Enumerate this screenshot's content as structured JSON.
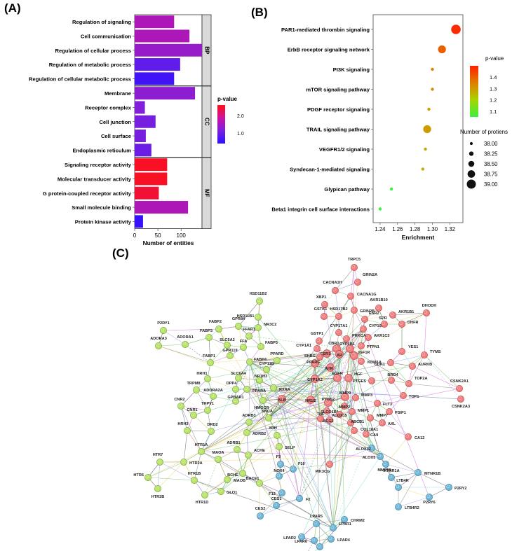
{
  "panels": {
    "a": "(A)",
    "b": "(B)",
    "c": "(C)"
  },
  "chart_data": [
    {
      "panel": "A",
      "type": "bar",
      "orientation": "horizontal",
      "xlabel": "Number of entities",
      "xlim": [
        0,
        145
      ],
      "xticks": [
        0,
        50,
        100
      ],
      "colorbar": {
        "title": "p-value",
        "ticks": [
          2.0,
          1.0
        ],
        "range": [
          0.4,
          2.6
        ],
        "colors": [
          "#ff1010",
          "#cc12a0",
          "#7a20e0",
          "#2a10ff"
        ]
      },
      "groups": [
        {
          "name": "BP",
          "categories": [
            "Regulation of signaling",
            "Cell communication",
            "Regulation of cellular process",
            "Regulation of metabolic process",
            "Regulation of cellular metabolic process"
          ],
          "values": [
            85,
            118,
            145,
            98,
            85
          ],
          "pvalues": [
            1.6,
            1.6,
            1.4,
            0.9,
            0.6
          ]
        },
        {
          "name": "CC",
          "categories": [
            "Membrane",
            "Receptor complex",
            "Cell junction",
            "Cell surface",
            "Endoplasmic reticulum"
          ],
          "values": [
            130,
            22,
            45,
            24,
            36
          ],
          "pvalues": [
            1.3,
            1.2,
            1.1,
            1.1,
            1.0
          ]
        },
        {
          "name": "MF",
          "categories": [
            "Signaling receptor activity",
            "Molecular transducer activity",
            "G protein-coupled receptor activity",
            "Small molecule binding",
            "Protein kinase activity"
          ],
          "values": [
            70,
            70,
            52,
            115,
            18
          ],
          "pvalues": [
            2.5,
            2.5,
            2.4,
            1.6,
            0.5
          ]
        }
      ]
    },
    {
      "panel": "B",
      "type": "scatter",
      "xlabel": "Enrichment",
      "xlim": [
        1.232,
        1.335
      ],
      "xticks": [
        1.24,
        1.26,
        1.28,
        1.3,
        1.32
      ],
      "categories": [
        "PAR1-mediated thrombin signaling",
        "ErbB receptor signaling network",
        "PI3K signaling",
        "mTOR signaling pathway",
        "PDGF receptor signaling",
        "TRAIL signaling pathway",
        "VEGFR1/2 signaling",
        "Syndecan-1-mediated signaling",
        "Glypican pathway",
        "Beta1 integrin cell surface interactions"
      ],
      "x": [
        1.327,
        1.311,
        1.3,
        1.3,
        1.296,
        1.294,
        1.292,
        1.289,
        1.253,
        1.24
      ],
      "size": [
        39.0,
        38.75,
        38.0,
        38.0,
        38.0,
        38.75,
        38.0,
        38.0,
        38.0,
        38.0
      ],
      "pvalue": [
        1.48,
        1.4,
        1.34,
        1.32,
        1.3,
        1.3,
        1.28,
        1.27,
        1.05,
        1.02
      ],
      "colorbar": {
        "title": "p-value",
        "ticks": [
          1.4,
          1.3,
          1.2,
          1.1
        ],
        "range": [
          1.05,
          1.5
        ],
        "colors": [
          "#ff2000",
          "#e07e00",
          "#a9d400",
          "#3bf040"
        ]
      },
      "size_legend": {
        "title": "Number of protiens",
        "labels": [
          "38.00",
          "38.25",
          "38.50",
          "38.75",
          "39.00"
        ]
      }
    }
  ],
  "network": {
    "nodes": [
      {
        "id": "TRPC5",
        "c": "r"
      },
      {
        "id": "GRIN2A",
        "c": "r"
      },
      {
        "id": "CACNA1H",
        "c": "r"
      },
      {
        "id": "CACNA1G",
        "c": "r"
      },
      {
        "id": "XBP1",
        "c": "r"
      },
      {
        "id": "GSTK1",
        "c": "r"
      },
      {
        "id": "HSD17B2",
        "c": "r"
      },
      {
        "id": "GRIN2B",
        "c": "r"
      },
      {
        "id": "ESR2",
        "c": "r"
      },
      {
        "id": "CYP19A1",
        "c": "r"
      },
      {
        "id": "AKR1C3",
        "c": "r"
      },
      {
        "id": "AKR1B10",
        "c": "r"
      },
      {
        "id": "AKR1B1",
        "c": "r"
      },
      {
        "id": "DHFR",
        "c": "r"
      },
      {
        "id": "DHODH",
        "c": "r"
      },
      {
        "id": "SPR",
        "c": "r"
      },
      {
        "id": "PTPN1",
        "c": "r"
      },
      {
        "id": "CYP17A1",
        "c": "r"
      },
      {
        "id": "PRKCA",
        "c": "r"
      },
      {
        "id": "CYP1B1",
        "c": "r"
      },
      {
        "id": "GSTP1",
        "c": "r"
      },
      {
        "id": "CBR1",
        "c": "r"
      },
      {
        "id": "ESR1",
        "c": "r"
      },
      {
        "id": "AR",
        "c": "r"
      },
      {
        "id": "IGF1R",
        "c": "r"
      },
      {
        "id": "KDM1A",
        "c": "r"
      },
      {
        "id": "YES1",
        "c": "r"
      },
      {
        "id": "TYMS",
        "c": "r"
      },
      {
        "id": "CDK1",
        "c": "r"
      },
      {
        "id": "AURKB",
        "c": "r"
      },
      {
        "id": "CYP1A1",
        "c": "r"
      },
      {
        "id": "SHBG",
        "c": "r"
      },
      {
        "id": "PPARG",
        "c": "r"
      },
      {
        "id": "AHR",
        "c": "r"
      },
      {
        "id": "EGFR",
        "c": "r"
      },
      {
        "id": "HGF",
        "c": "r"
      },
      {
        "id": "PTGES",
        "c": "r"
      },
      {
        "id": "BRD4",
        "c": "r"
      },
      {
        "id": "TOP2A",
        "c": "r"
      },
      {
        "id": "TOP1",
        "c": "r"
      },
      {
        "id": "CSNK2A1",
        "c": "r"
      },
      {
        "id": "CSNK2A3",
        "c": "r"
      },
      {
        "id": "CYP1A2",
        "c": "r"
      },
      {
        "id": "ALB",
        "c": "r"
      },
      {
        "id": "NR1I2",
        "c": "r"
      },
      {
        "id": "PTGS2",
        "c": "r"
      },
      {
        "id": "MMP9",
        "c": "r"
      },
      {
        "id": "MMP3",
        "c": "r"
      },
      {
        "id": "MMP2",
        "c": "r"
      },
      {
        "id": "MMP1",
        "c": "r"
      },
      {
        "id": "FLT3",
        "c": "r"
      },
      {
        "id": "PSIP1",
        "c": "r"
      },
      {
        "id": "MMP7",
        "c": "r"
      },
      {
        "id": "AXL",
        "c": "r"
      },
      {
        "id": "SLCO1B1",
        "c": "r"
      },
      {
        "id": "ABCG2",
        "c": "r"
      },
      {
        "id": "ABCB1",
        "c": "r"
      },
      {
        "id": "ALOX15",
        "c": "r"
      },
      {
        "id": "TNF",
        "c": "r"
      },
      {
        "id": "COL18A1",
        "c": "r"
      },
      {
        "id": "CA9",
        "c": "r"
      },
      {
        "id": "CA12",
        "c": "r"
      },
      {
        "id": "PIK3CG",
        "c": "r"
      },
      {
        "id": "HSD11B2",
        "c": "g"
      },
      {
        "id": "HSD11B1",
        "c": "g"
      },
      {
        "id": "NR3C2",
        "c": "g"
      },
      {
        "id": "FABP2",
        "c": "g"
      },
      {
        "id": "GPR84",
        "c": "g"
      },
      {
        "id": "FFAR1",
        "c": "g"
      },
      {
        "id": "FABP3",
        "c": "g"
      },
      {
        "id": "FFA",
        "c": "g"
      },
      {
        "id": "FABP5",
        "c": "g"
      },
      {
        "id": "SLC5A2",
        "c": "g"
      },
      {
        "id": "GPR119",
        "c": "g"
      },
      {
        "id": "PPARD",
        "c": "g"
      },
      {
        "id": "P2RY1",
        "c": "g"
      },
      {
        "id": "ADORA3",
        "c": "g"
      },
      {
        "id": "ADORA1",
        "c": "g"
      },
      {
        "id": "FABP1",
        "c": "g"
      },
      {
        "id": "FABP4",
        "c": "g"
      },
      {
        "id": "CYP11B",
        "c": "g"
      },
      {
        "id": "SLC6A4",
        "c": "g"
      },
      {
        "id": "NR1H3",
        "c": "g"
      },
      {
        "id": "HRH1",
        "c": "g"
      },
      {
        "id": "TRPM8",
        "c": "g"
      },
      {
        "id": "ADORA2A",
        "c": "g"
      },
      {
        "id": "DPP4",
        "c": "g"
      },
      {
        "id": "PPARA",
        "c": "g"
      },
      {
        "id": "RXRA",
        "c": "g"
      },
      {
        "id": "GPBAR1",
        "c": "g"
      },
      {
        "id": "TRPV1",
        "c": "g"
      },
      {
        "id": "CNR2",
        "c": "g"
      },
      {
        "id": "CNR1",
        "c": "g"
      },
      {
        "id": "HMGCR",
        "c": "g"
      },
      {
        "id": "SNCA",
        "c": "g"
      },
      {
        "id": "HRH3",
        "c": "g"
      },
      {
        "id": "DRD2",
        "c": "g"
      },
      {
        "id": "ADRB3",
        "c": "g"
      },
      {
        "id": "ADRB2",
        "c": "g"
      },
      {
        "id": "XDH",
        "c": "g"
      },
      {
        "id": "ADRB1",
        "c": "g"
      },
      {
        "id": "ACHE",
        "c": "g"
      },
      {
        "id": "SELP",
        "c": "g"
      },
      {
        "id": "HTR1A",
        "c": "g"
      },
      {
        "id": "MAOA",
        "c": "g"
      },
      {
        "id": "HTR7",
        "c": "g"
      },
      {
        "id": "HTR2A",
        "c": "g"
      },
      {
        "id": "HTR6",
        "c": "g"
      },
      {
        "id": "HTR2B",
        "c": "g"
      },
      {
        "id": "HTR1B",
        "c": "g"
      },
      {
        "id": "MAOB",
        "c": "g"
      },
      {
        "id": "HTR1D",
        "c": "g"
      },
      {
        "id": "BCHE",
        "c": "g"
      },
      {
        "id": "BACE1",
        "c": "g"
      },
      {
        "id": "GLO1",
        "c": "g"
      },
      {
        "id": "F3",
        "c": "b"
      },
      {
        "id": "F10",
        "c": "b"
      },
      {
        "id": "NOX4",
        "c": "b"
      },
      {
        "id": "F12",
        "c": "b"
      },
      {
        "id": "F2",
        "c": "b"
      },
      {
        "id": "CES1",
        "c": "b"
      },
      {
        "id": "CES2",
        "c": "b"
      },
      {
        "id": "ALOX12",
        "c": "b"
      },
      {
        "id": "ALOX5",
        "c": "b"
      },
      {
        "id": "MMP13",
        "c": "b"
      },
      {
        "id": "MTNR1A",
        "c": "b"
      },
      {
        "id": "MTNR1B",
        "c": "b"
      },
      {
        "id": "LTB4R",
        "c": "b"
      },
      {
        "id": "P2RY2",
        "c": "b"
      },
      {
        "id": "P2RY6",
        "c": "b"
      },
      {
        "id": "LTB4R2",
        "c": "b"
      },
      {
        "id": "CHRM2",
        "c": "b"
      },
      {
        "id": "LPAR5",
        "c": "b"
      },
      {
        "id": "LPAR1",
        "c": "b"
      },
      {
        "id": "LPAR2",
        "c": "b"
      },
      {
        "id": "LPAR6",
        "c": "b"
      },
      {
        "id": "LPAR3",
        "c": "b"
      },
      {
        "id": "LPAR4",
        "c": "b"
      },
      {
        "id": "ENPP2",
        "c": "b"
      }
    ]
  }
}
